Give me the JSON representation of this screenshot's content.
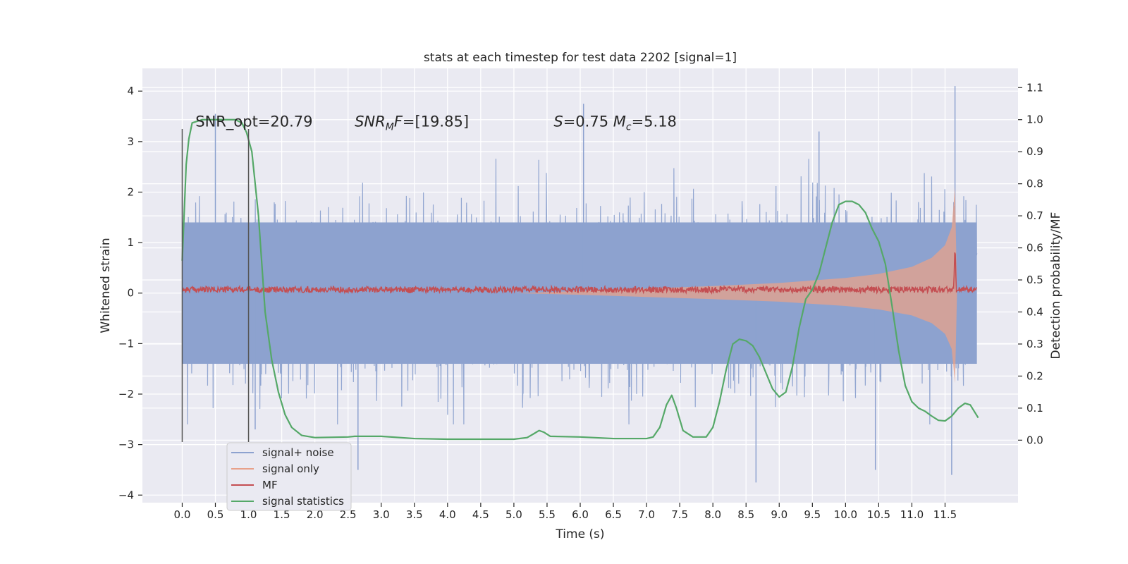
{
  "chart_data": {
    "type": "line",
    "title": "stats at each timestep for test data 2202 [signal=1]",
    "xlabel": "Time (s)",
    "ylabel_left": "Whitened strain",
    "ylabel_right": "Detection probability/MF",
    "xlim": [
      -0.6,
      12.6
    ],
    "ylim_left": [
      -4.15,
      4.45
    ],
    "ylim_right": [
      -0.195,
      1.16
    ],
    "x_ticks": [
      "0.0",
      "0.5",
      "1.0",
      "1.5",
      "2.0",
      "2.5",
      "3.0",
      "3.5",
      "4.0",
      "4.5",
      "5.0",
      "5.5",
      "6.0",
      "6.5",
      "7.0",
      "7.5",
      "8.0",
      "8.5",
      "9.0",
      "9.5",
      "10.0",
      "10.5",
      "11.0",
      "11.5"
    ],
    "x_tick_values": [
      0,
      0.5,
      1,
      1.5,
      2,
      2.5,
      3,
      3.5,
      4,
      4.5,
      5,
      5.5,
      6,
      6.5,
      7,
      7.5,
      8,
      8.5,
      9,
      9.5,
      10,
      10.5,
      11,
      11.5
    ],
    "y_ticks_left": [
      "4",
      "3",
      "2",
      "1",
      "0",
      "−1",
      "−2",
      "−3",
      "−4"
    ],
    "y_tick_values_left": [
      4,
      3,
      2,
      1,
      0,
      -1,
      -2,
      -3,
      -4
    ],
    "y_ticks_right": [
      "1.1",
      "1.0",
      "0.9",
      "0.8",
      "0.7",
      "0.6",
      "0.5",
      "0.4",
      "0.3",
      "0.2",
      "0.1",
      "0.0"
    ],
    "y_tick_values_right": [
      1.1,
      1.0,
      0.9,
      0.8,
      0.7,
      0.6,
      0.5,
      0.4,
      0.3,
      0.2,
      0.1,
      0.0
    ],
    "grid": true,
    "legend_position": "lower-left",
    "annotations": [
      {
        "text_html": "SNR_opt=20.79",
        "x": 0.2,
        "y": 3.3
      },
      {
        "text_html": "<tspan font-style='italic'>SNR</tspan><tspan font-style='italic' font-size='14' dy='5'>M</tspan><tspan font-style='italic' dy='-5'>F</tspan>=[19.85]",
        "x": 2.6,
        "y": 3.3
      },
      {
        "text_html": "<tspan font-style='italic'>S</tspan>=0.75   <tspan font-style='italic'>M</tspan><tspan font-style='italic' font-size='14' dy='5'>c</tspan><tspan dy='-5'>=5.18</tspan>",
        "x": 5.6,
        "y": 3.3
      }
    ],
    "vertical_markers": [
      {
        "x": 0.0,
        "y_range": [
          -2.95,
          3.25
        ]
      },
      {
        "x": 1.0,
        "y_range": [
          -2.95,
          3.25
        ]
      }
    ],
    "series": [
      {
        "name": "signal+ noise",
        "axis": "left",
        "color": "#8da2cf",
        "kind": "noise",
        "x_range": [
          0.0,
          11.98
        ],
        "typical_amplitude": 1.4,
        "random_seed": 2202,
        "peaks": [
          [
            0.5,
            3.55
          ],
          [
            1.1,
            -2.7
          ],
          [
            2.65,
            -3.5
          ],
          [
            6.05,
            3.75
          ],
          [
            8.65,
            -3.75
          ],
          [
            11.65,
            4.1
          ],
          [
            11.6,
            -3.6
          ],
          [
            10.45,
            -3.5
          ],
          [
            9.6,
            3.2
          ]
        ]
      },
      {
        "name": "signal only",
        "axis": "left",
        "color": "#e8a18a",
        "kind": "chirp_envelope",
        "x_range": [
          5.0,
          11.68
        ],
        "envelope": [
          [
            5.0,
            0.0
          ],
          [
            6.0,
            0.04
          ],
          [
            7.0,
            0.09
          ],
          [
            8.0,
            0.14
          ],
          [
            9.0,
            0.2
          ],
          [
            10.0,
            0.3
          ],
          [
            10.5,
            0.38
          ],
          [
            11.0,
            0.52
          ],
          [
            11.3,
            0.7
          ],
          [
            11.5,
            0.95
          ],
          [
            11.6,
            1.3
          ],
          [
            11.65,
            2.1
          ],
          [
            11.68,
            0.0
          ]
        ]
      },
      {
        "name": "MF",
        "axis": "left",
        "color": "#c44e52",
        "kind": "mf",
        "x_range": [
          0.0,
          11.98
        ],
        "baseline": 0.07,
        "jitter": 0.06,
        "spike": {
          "x": 11.65,
          "y": 1.0
        }
      },
      {
        "name": "signal statistics",
        "axis": "right",
        "color": "#55a868",
        "kind": "line",
        "points": [
          [
            0.0,
            0.56
          ],
          [
            0.06,
            0.86
          ],
          [
            0.1,
            0.94
          ],
          [
            0.15,
            0.99
          ],
          [
            0.3,
            1.0
          ],
          [
            0.5,
            1.0
          ],
          [
            0.8,
            1.0
          ],
          [
            0.9,
            0.99
          ],
          [
            0.97,
            0.96
          ],
          [
            1.05,
            0.9
          ],
          [
            1.15,
            0.7
          ],
          [
            1.25,
            0.4
          ],
          [
            1.35,
            0.25
          ],
          [
            1.45,
            0.15
          ],
          [
            1.55,
            0.08
          ],
          [
            1.65,
            0.04
          ],
          [
            1.8,
            0.015
          ],
          [
            2.0,
            0.008
          ],
          [
            2.5,
            0.01
          ],
          [
            2.6,
            0.012
          ],
          [
            3.0,
            0.012
          ],
          [
            3.5,
            0.005
          ],
          [
            4.0,
            0.003
          ],
          [
            4.5,
            0.003
          ],
          [
            5.0,
            0.003
          ],
          [
            5.2,
            0.008
          ],
          [
            5.3,
            0.02
          ],
          [
            5.38,
            0.03
          ],
          [
            5.45,
            0.025
          ],
          [
            5.55,
            0.012
          ],
          [
            6.0,
            0.01
          ],
          [
            6.5,
            0.005
          ],
          [
            7.0,
            0.005
          ],
          [
            7.1,
            0.01
          ],
          [
            7.2,
            0.04
          ],
          [
            7.3,
            0.11
          ],
          [
            7.38,
            0.14
          ],
          [
            7.45,
            0.1
          ],
          [
            7.55,
            0.03
          ],
          [
            7.7,
            0.01
          ],
          [
            7.9,
            0.01
          ],
          [
            8.0,
            0.04
          ],
          [
            8.1,
            0.12
          ],
          [
            8.2,
            0.22
          ],
          [
            8.3,
            0.3
          ],
          [
            8.4,
            0.315
          ],
          [
            8.5,
            0.31
          ],
          [
            8.6,
            0.295
          ],
          [
            8.7,
            0.26
          ],
          [
            8.8,
            0.21
          ],
          [
            8.9,
            0.16
          ],
          [
            9.0,
            0.135
          ],
          [
            9.1,
            0.15
          ],
          [
            9.2,
            0.23
          ],
          [
            9.3,
            0.35
          ],
          [
            9.4,
            0.44
          ],
          [
            9.5,
            0.47
          ],
          [
            9.6,
            0.52
          ],
          [
            9.7,
            0.6
          ],
          [
            9.8,
            0.68
          ],
          [
            9.9,
            0.735
          ],
          [
            10.0,
            0.745
          ],
          [
            10.1,
            0.745
          ],
          [
            10.2,
            0.735
          ],
          [
            10.3,
            0.71
          ],
          [
            10.4,
            0.66
          ],
          [
            10.5,
            0.62
          ],
          [
            10.6,
            0.55
          ],
          [
            10.7,
            0.42
          ],
          [
            10.8,
            0.28
          ],
          [
            10.9,
            0.17
          ],
          [
            11.0,
            0.12
          ],
          [
            11.1,
            0.1
          ],
          [
            11.2,
            0.09
          ],
          [
            11.3,
            0.075
          ],
          [
            11.4,
            0.062
          ],
          [
            11.5,
            0.06
          ],
          [
            11.6,
            0.075
          ],
          [
            11.7,
            0.1
          ],
          [
            11.8,
            0.115
          ],
          [
            11.88,
            0.11
          ],
          [
            11.94,
            0.09
          ],
          [
            12.0,
            0.07
          ]
        ]
      }
    ]
  }
}
